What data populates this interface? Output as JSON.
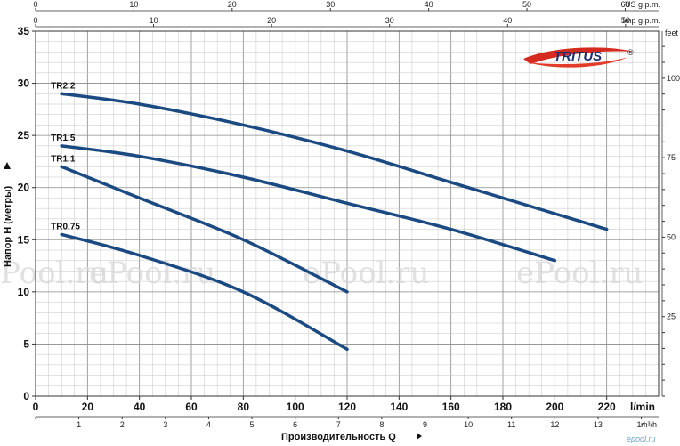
{
  "chart_data": {
    "type": "line",
    "title": "",
    "xlabel": "Производительность Q",
    "ylabel": "Напор H (метры)",
    "xlim": [
      0,
      240
    ],
    "ylim": [
      0,
      35
    ],
    "x_unit": "l/min",
    "x_ticks": [
      "0",
      "20",
      "40",
      "60",
      "80",
      "100",
      "120",
      "140",
      "160",
      "180",
      "200",
      "220"
    ],
    "y_ticks": [
      "0",
      "5",
      "10",
      "15",
      "20",
      "25",
      "30",
      "35"
    ],
    "grid": true,
    "legend": "inline labels at curve starts",
    "series": [
      {
        "name": "TR2.2",
        "x": [
          10,
          40,
          80,
          120,
          160,
          200,
          220
        ],
        "y": [
          29,
          28,
          26,
          23.5,
          20.5,
          17.5,
          16
        ]
      },
      {
        "name": "TR1.5",
        "x": [
          10,
          40,
          80,
          120,
          160,
          200
        ],
        "y": [
          24,
          23,
          21,
          18.5,
          16,
          13
        ]
      },
      {
        "name": "TR1.1",
        "x": [
          10,
          40,
          80,
          120
        ],
        "y": [
          22,
          19,
          15,
          10
        ]
      },
      {
        "name": "TR0.75",
        "x": [
          10,
          40,
          80,
          120
        ],
        "y": [
          15.5,
          13.5,
          10,
          4.5
        ]
      }
    ],
    "secondary_axes": {
      "us_gpm": {
        "label": "US g.p.m.",
        "max": 63.4,
        "ticks": [
          "0",
          "10",
          "20",
          "30",
          "40",
          "50",
          "60"
        ]
      },
      "imp_gpm": {
        "label": "Imp g.p.m.",
        "max": 52.8,
        "ticks": [
          "0",
          "10",
          "20",
          "30",
          "40",
          "50"
        ]
      },
      "m3h": {
        "label": "m³/h",
        "max": 14.4,
        "ticks": [
          "0",
          "1",
          "2",
          "3",
          "4",
          "5",
          "6",
          "7",
          "8",
          "9",
          "10",
          "11",
          "12",
          "13",
          "14"
        ]
      },
      "feet": {
        "label": "feet",
        "max": 114.8,
        "ticks": [
          "0",
          "25",
          "50",
          "75",
          "100"
        ]
      }
    },
    "line_color": "#1b4a82"
  },
  "brand": {
    "logo": "TRITUS",
    "reg": "®"
  },
  "watermarks": [
    "ePool.ru",
    "ePool.ru",
    "ePool.ru",
    "ePool.ru"
  ],
  "corner_mark": "epool.ru"
}
